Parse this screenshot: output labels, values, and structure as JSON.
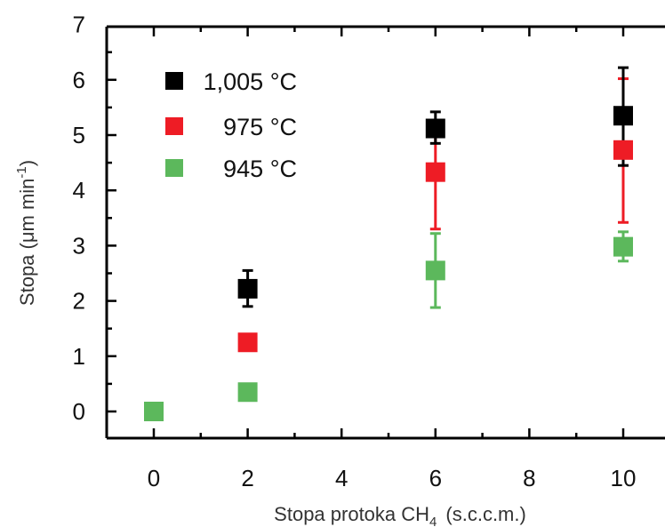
{
  "chart_data": {
    "type": "scatter",
    "title": "",
    "xlabel": "Stopa protoka CH",
    "xlabel_sub": "4",
    "xlabel_unit": "(s.c.c.m.)",
    "ylabel": "Stopa (μm min",
    "ylabel_sup": "-1",
    "ylabel_close": ")",
    "xlim": [
      -1,
      11
    ],
    "ylim": [
      -0.5,
      7
    ],
    "xticks": [
      0,
      2,
      4,
      6,
      8,
      10
    ],
    "yticks": [
      0,
      1,
      2,
      3,
      4,
      5,
      6,
      7
    ],
    "legend_position": "top-left",
    "grid": false,
    "series": [
      {
        "name": "1,005 °C",
        "color": "#000000",
        "x": [
          2,
          6,
          10
        ],
        "y": [
          2.22,
          5.12,
          5.35
        ],
        "err_low": [
          1.9,
          4.85,
          4.45
        ],
        "err_high": [
          2.55,
          5.42,
          6.22
        ]
      },
      {
        "name": "975 °C",
        "color": "#ee1c25",
        "x": [
          2,
          6,
          10
        ],
        "y": [
          1.25,
          4.33,
          4.73
        ],
        "err_low": [
          1.25,
          3.3,
          3.42
        ],
        "err_high": [
          1.25,
          5.2,
          6.02
        ]
      },
      {
        "name": "945 °C",
        "color": "#5cb85c",
        "x": [
          0,
          2,
          6,
          10
        ],
        "y": [
          0.0,
          0.35,
          2.55,
          2.98
        ],
        "err_low": [
          0.0,
          0.35,
          1.88,
          2.72
        ],
        "err_high": [
          0.0,
          0.35,
          3.22,
          3.25
        ]
      }
    ]
  }
}
